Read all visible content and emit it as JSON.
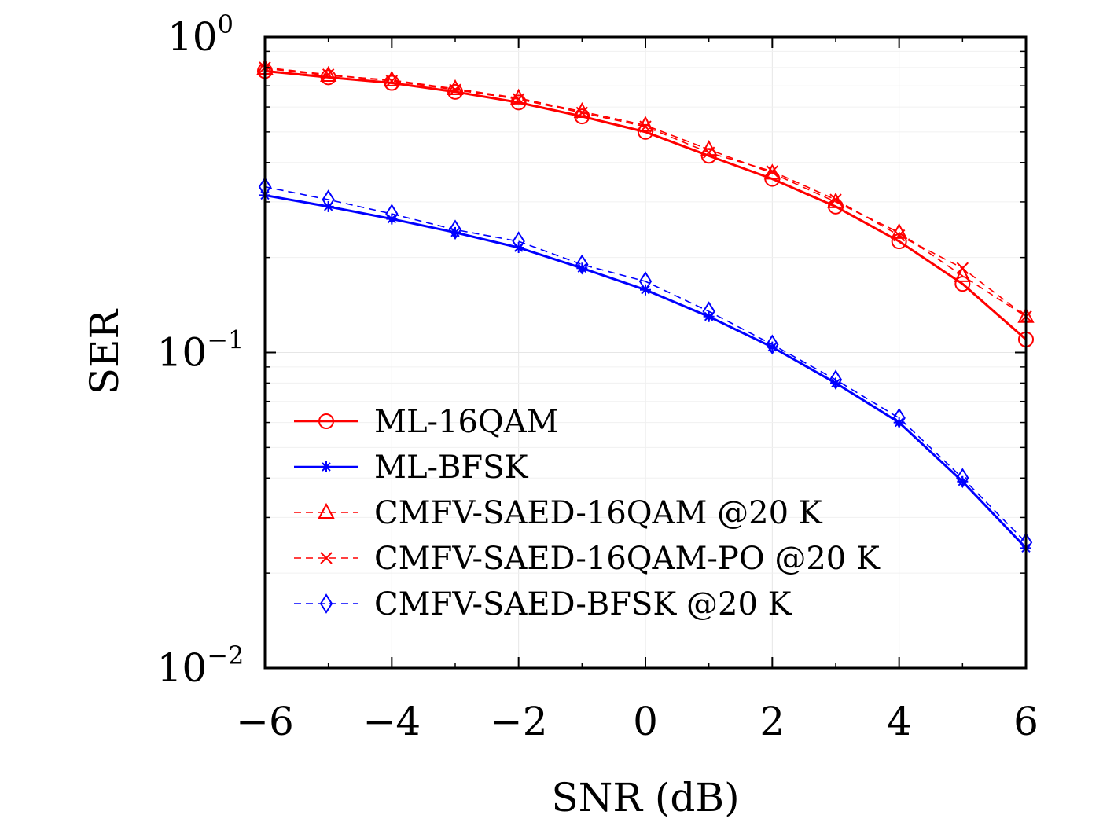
{
  "chart_data": {
    "type": "line",
    "xlabel": "SNR (dB)",
    "ylabel": "SER",
    "xlim": [
      -6,
      6
    ],
    "ylim": [
      0.01,
      1
    ],
    "yscale": "log",
    "grid": true,
    "legend_position": "lower-left",
    "x_ticks": [
      "−6",
      "−4",
      "−2",
      "0",
      "2",
      "4",
      "6"
    ],
    "y_ticks": [
      {
        "base": "10",
        "exp": "0"
      },
      {
        "base": "10",
        "exp": "−1"
      },
      {
        "base": "10",
        "exp": "−2"
      }
    ],
    "x": [
      -6,
      -5,
      -4,
      -3,
      -2,
      -1,
      0,
      1,
      2,
      3,
      4,
      5,
      6
    ],
    "series": [
      {
        "name": "ML-16QAM",
        "color": "#ff0000",
        "style": "solid",
        "marker": "circle",
        "values": [
          0.78,
          0.745,
          0.715,
          0.67,
          0.62,
          0.56,
          0.5,
          0.42,
          0.355,
          0.29,
          0.225,
          0.165,
          0.11
        ]
      },
      {
        "name": "ML-BFSK",
        "color": "#0000ff",
        "style": "solid",
        "marker": "star",
        "values": [
          0.315,
          0.29,
          0.265,
          0.24,
          0.215,
          0.185,
          0.158,
          0.13,
          0.104,
          0.08,
          0.06,
          0.039,
          0.024
        ]
      },
      {
        "name": "CMFV-SAED-16QAM @20 K",
        "color": "#ff0000",
        "style": "dashed",
        "marker": "triangle",
        "values": [
          0.795,
          0.755,
          0.73,
          0.685,
          0.64,
          0.58,
          0.525,
          0.44,
          0.37,
          0.3,
          0.24,
          0.175,
          0.13
        ]
      },
      {
        "name": "CMFV-SAED-16QAM-PO @20 K",
        "color": "#ff0000",
        "style": "dashed",
        "marker": "x",
        "values": [
          0.8,
          0.76,
          0.725,
          0.68,
          0.635,
          0.575,
          0.52,
          0.43,
          0.375,
          0.305,
          0.235,
          0.185,
          0.13
        ]
      },
      {
        "name": "CMFV-SAED-BFSK @20 K",
        "color": "#0000ff",
        "style": "dashed",
        "marker": "diamond",
        "values": [
          0.335,
          0.305,
          0.275,
          0.245,
          0.225,
          0.19,
          0.168,
          0.135,
          0.106,
          0.082,
          0.062,
          0.04,
          0.025
        ]
      }
    ]
  }
}
